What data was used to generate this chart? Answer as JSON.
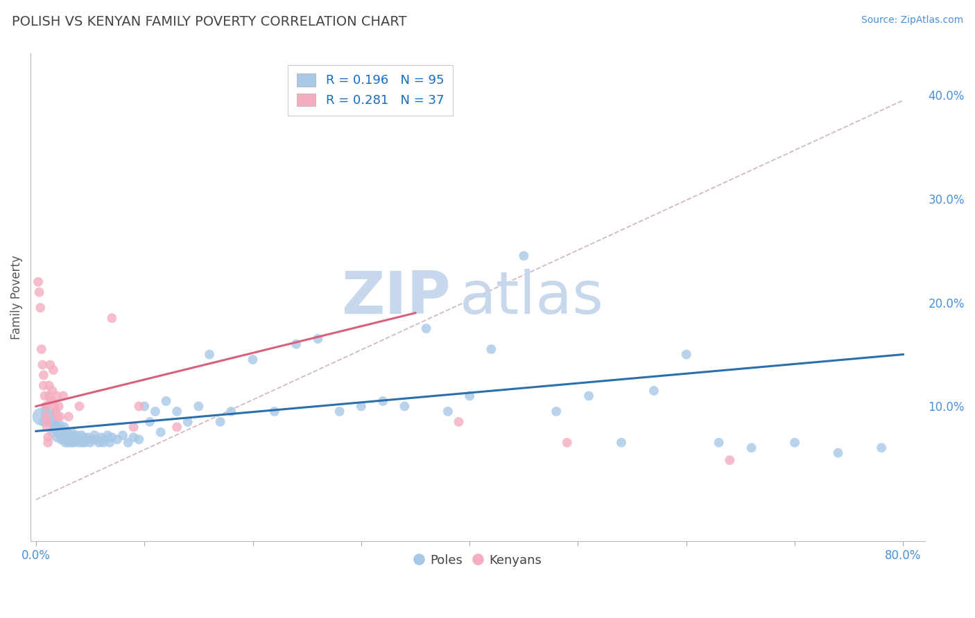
{
  "title": "POLISH VS KENYAN FAMILY POVERTY CORRELATION CHART",
  "source": "Source: ZipAtlas.com",
  "ylabel": "Family Poverty",
  "xlim": [
    -0.005,
    0.82
  ],
  "ylim": [
    -0.03,
    0.44
  ],
  "x_ticks": [
    0.0,
    0.1,
    0.2,
    0.3,
    0.4,
    0.5,
    0.6,
    0.7,
    0.8
  ],
  "x_tick_labels": [
    "0.0%",
    "",
    "",
    "",
    "",
    "",
    "",
    "",
    "80.0%"
  ],
  "y_tick_positions": [
    0.1,
    0.2,
    0.3,
    0.4
  ],
  "y_tick_labels": [
    "10.0%",
    "20.0%",
    "30.0%",
    "40.0%"
  ],
  "poles_R": 0.196,
  "poles_N": 95,
  "kenyans_R": 0.281,
  "kenyans_N": 37,
  "poles_color": "#a8c8e8",
  "kenyans_color": "#f4aec0",
  "poles_line_color": "#2c6fad",
  "kenyans_line_color": "#d9607a",
  "diag_line_color": "#d0b8c0",
  "background_color": "#ffffff",
  "grid_color": "#d8d8d8",
  "watermark_text_zip": "ZIP",
  "watermark_text_atlas": "atlas",
  "watermark_color": "#dde8f5",
  "legend_text_color": "#222222",
  "legend_N_color": "#1a6bbf",
  "tick_color": "#4a90d9",
  "title_color": "#444444",
  "ylabel_color": "#555555",
  "poles_x": [
    0.005,
    0.007,
    0.009,
    0.01,
    0.012,
    0.013,
    0.015,
    0.015,
    0.016,
    0.017,
    0.018,
    0.018,
    0.019,
    0.02,
    0.021,
    0.022,
    0.022,
    0.023,
    0.024,
    0.024,
    0.025,
    0.025,
    0.026,
    0.027,
    0.027,
    0.028,
    0.029,
    0.03,
    0.031,
    0.032,
    0.033,
    0.033,
    0.034,
    0.035,
    0.036,
    0.037,
    0.038,
    0.04,
    0.041,
    0.042,
    0.043,
    0.044,
    0.045,
    0.046,
    0.048,
    0.05,
    0.052,
    0.054,
    0.056,
    0.058,
    0.06,
    0.062,
    0.064,
    0.066,
    0.068,
    0.07,
    0.075,
    0.08,
    0.085,
    0.09,
    0.095,
    0.1,
    0.105,
    0.11,
    0.115,
    0.12,
    0.13,
    0.14,
    0.15,
    0.16,
    0.17,
    0.18,
    0.2,
    0.22,
    0.24,
    0.26,
    0.28,
    0.3,
    0.32,
    0.34,
    0.36,
    0.38,
    0.4,
    0.42,
    0.45,
    0.48,
    0.51,
    0.54,
    0.57,
    0.6,
    0.63,
    0.66,
    0.7,
    0.74,
    0.78
  ],
  "poles_y": [
    0.09,
    0.085,
    0.095,
    0.1,
    0.085,
    0.092,
    0.088,
    0.075,
    0.082,
    0.078,
    0.095,
    0.085,
    0.07,
    0.08,
    0.078,
    0.072,
    0.082,
    0.068,
    0.078,
    0.072,
    0.068,
    0.075,
    0.08,
    0.065,
    0.072,
    0.07,
    0.075,
    0.065,
    0.068,
    0.072,
    0.065,
    0.075,
    0.068,
    0.065,
    0.07,
    0.068,
    0.072,
    0.065,
    0.068,
    0.072,
    0.065,
    0.07,
    0.065,
    0.068,
    0.07,
    0.065,
    0.068,
    0.072,
    0.068,
    0.065,
    0.07,
    0.065,
    0.068,
    0.072,
    0.065,
    0.07,
    0.068,
    0.072,
    0.065,
    0.07,
    0.068,
    0.1,
    0.085,
    0.095,
    0.075,
    0.105,
    0.095,
    0.085,
    0.1,
    0.15,
    0.085,
    0.095,
    0.145,
    0.095,
    0.16,
    0.165,
    0.095,
    0.1,
    0.105,
    0.1,
    0.175,
    0.095,
    0.11,
    0.155,
    0.245,
    0.095,
    0.11,
    0.065,
    0.115,
    0.15,
    0.065,
    0.06,
    0.065,
    0.055,
    0.06
  ],
  "poles_sizes": [
    350,
    100,
    100,
    100,
    100,
    100,
    100,
    100,
    100,
    100,
    100,
    100,
    100,
    100,
    100,
    100,
    100,
    100,
    100,
    100,
    100,
    100,
    100,
    100,
    100,
    100,
    100,
    100,
    100,
    100,
    100,
    100,
    100,
    100,
    100,
    100,
    100,
    100,
    100,
    100,
    100,
    100,
    100,
    100,
    100,
    100,
    100,
    100,
    100,
    100,
    100,
    100,
    100,
    100,
    100,
    100,
    100,
    100,
    100,
    100,
    100,
    100,
    100,
    100,
    100,
    100,
    100,
    100,
    100,
    100,
    100,
    100,
    100,
    100,
    100,
    100,
    100,
    100,
    100,
    100,
    100,
    100,
    100,
    100,
    100,
    100,
    100,
    100,
    100,
    100,
    100,
    100,
    100,
    100,
    100
  ],
  "kenyans_x": [
    0.002,
    0.003,
    0.004,
    0.005,
    0.006,
    0.007,
    0.007,
    0.008,
    0.009,
    0.009,
    0.01,
    0.01,
    0.011,
    0.011,
    0.012,
    0.012,
    0.013,
    0.014,
    0.015,
    0.015,
    0.016,
    0.017,
    0.018,
    0.019,
    0.02,
    0.021,
    0.022,
    0.025,
    0.03,
    0.04,
    0.07,
    0.09,
    0.095,
    0.13,
    0.39,
    0.49,
    0.64
  ],
  "kenyans_y": [
    0.22,
    0.21,
    0.195,
    0.155,
    0.14,
    0.13,
    0.12,
    0.11,
    0.1,
    0.09,
    0.085,
    0.08,
    0.07,
    0.065,
    0.12,
    0.11,
    0.14,
    0.105,
    0.115,
    0.105,
    0.135,
    0.1,
    0.095,
    0.11,
    0.09,
    0.1,
    0.09,
    0.11,
    0.09,
    0.1,
    0.185,
    0.08,
    0.1,
    0.08,
    0.085,
    0.065,
    0.048
  ],
  "kenyans_sizes": [
    100,
    100,
    100,
    100,
    100,
    100,
    100,
    100,
    100,
    100,
    100,
    100,
    100,
    100,
    100,
    100,
    100,
    100,
    100,
    100,
    100,
    100,
    100,
    100,
    100,
    100,
    100,
    100,
    100,
    100,
    100,
    100,
    100,
    100,
    100,
    100,
    100
  ],
  "poles_trend_x": [
    0.0,
    0.8
  ],
  "poles_trend_y": [
    0.076,
    0.15
  ],
  "kenyans_trend_x": [
    0.0,
    0.35
  ],
  "kenyans_trend_y": [
    0.1,
    0.19
  ],
  "diag_trend_x": [
    0.0,
    0.8
  ],
  "diag_trend_y": [
    0.01,
    0.395
  ]
}
